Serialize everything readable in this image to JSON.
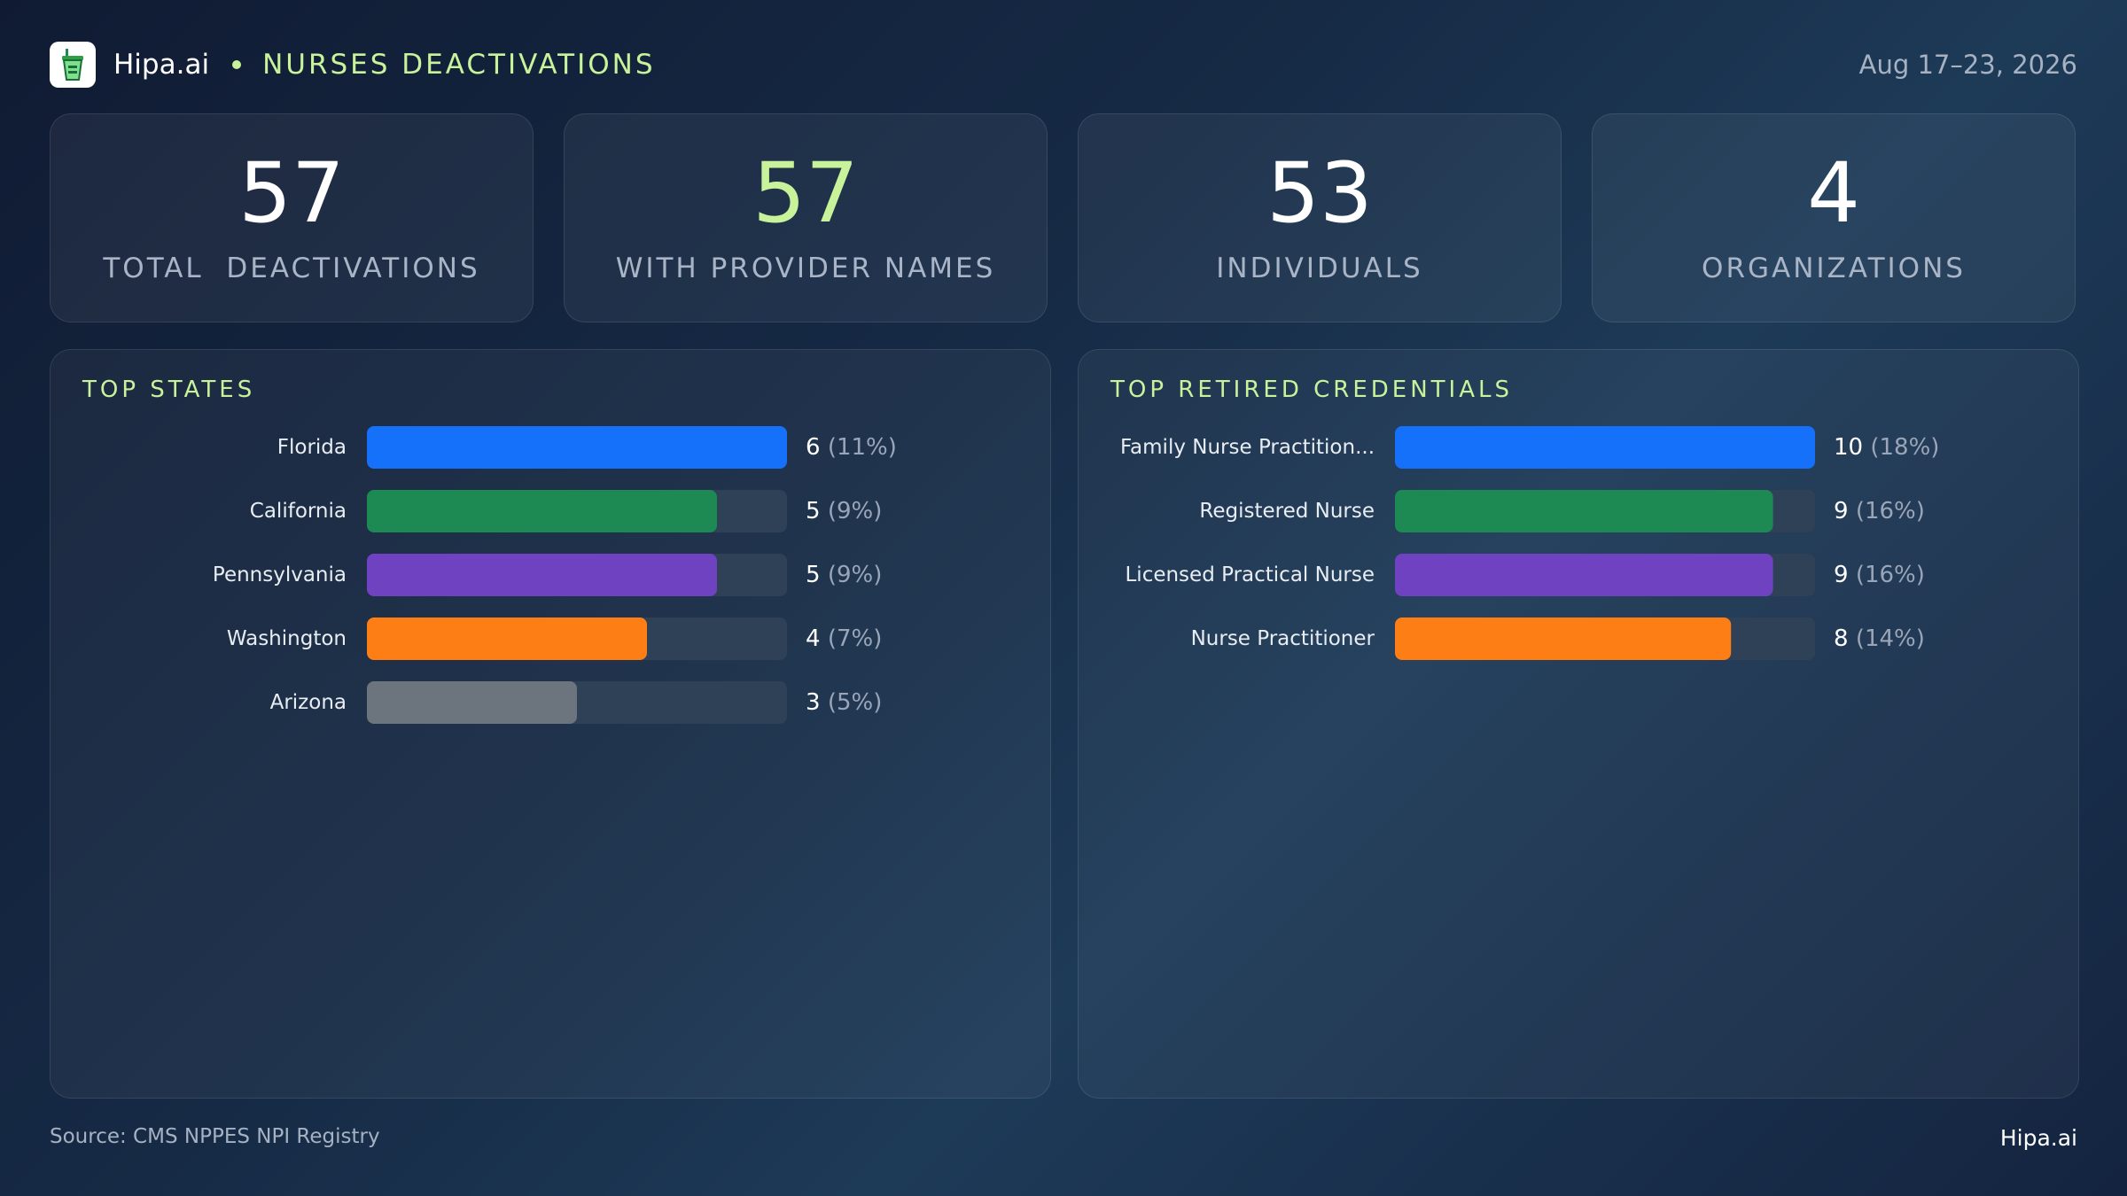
{
  "header": {
    "brand": "Hipa.ai",
    "title": "NURSES DEACTIVATIONS",
    "date_range": "Aug 17–23, 2026",
    "logo_icon": "cup-icon"
  },
  "stats": [
    {
      "value": "57",
      "label": "TOTAL  DEACTIVATIONS",
      "accent": false
    },
    {
      "value": "57",
      "label": "WITH PROVIDER NAMES",
      "accent": true
    },
    {
      "value": "53",
      "label": "INDIVIDUALS",
      "accent": false
    },
    {
      "value": "4",
      "label": "ORGANIZATIONS",
      "accent": false
    }
  ],
  "colors": {
    "accent": "#c8f39b",
    "track": "#2f4157",
    "blue": "#1570fa",
    "green": "#1c8a52",
    "purple": "#6f42c1",
    "orange": "#fd7e14",
    "gray": "#6c757d"
  },
  "chart_data": [
    {
      "type": "bar",
      "orientation": "horizontal",
      "title": "TOP STATES",
      "categories": [
        "Florida",
        "California",
        "Pennsylvania",
        "Washington",
        "Arizona"
      ],
      "values": [
        6,
        5,
        5,
        4,
        3
      ],
      "value_labels": [
        "6",
        "5",
        "5",
        "4",
        "3"
      ],
      "percent_labels": [
        "(11%)",
        "(9%)",
        "(9%)",
        "(7%)",
        "(5%)"
      ],
      "colors": [
        "#1570fa",
        "#1c8a52",
        "#6f42c1",
        "#fd7e14",
        "#6c757d"
      ],
      "xlim": [
        0,
        6
      ]
    },
    {
      "type": "bar",
      "orientation": "horizontal",
      "title": "TOP RETIRED CREDENTIALS",
      "categories": [
        "Family Nurse Practition...",
        "Registered Nurse",
        "Licensed Practical Nurse",
        "Nurse Practitioner"
      ],
      "values": [
        10,
        9,
        9,
        8
      ],
      "value_labels": [
        "10",
        "9",
        "9",
        "8"
      ],
      "percent_labels": [
        "(18%)",
        "(16%)",
        "(16%)",
        "(14%)"
      ],
      "colors": [
        "#1570fa",
        "#1c8a52",
        "#6f42c1",
        "#fd7e14"
      ],
      "xlim": [
        0,
        10
      ]
    }
  ],
  "footer": {
    "source": "Source: CMS NPPES NPI Registry",
    "brand": "Hipa.ai"
  }
}
